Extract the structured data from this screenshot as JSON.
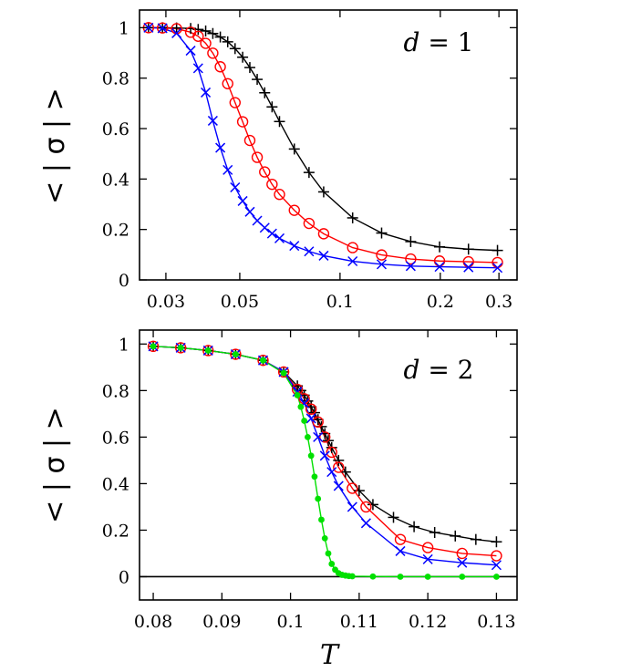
{
  "chart_data": [
    {
      "type": "line",
      "annotation": "d = 1",
      "ylabel": "< | σ | >",
      "xlabel": "",
      "xscale": "log",
      "xlim": [
        0.025,
        0.34
      ],
      "ylim": [
        0,
        1.07
      ],
      "xticks": [
        0.03,
        0.05,
        0.1,
        0.2,
        0.3
      ],
      "xtick_labels": [
        "0.03",
        "0.05",
        "0.1",
        "0.2",
        "0.3"
      ],
      "yticks": [
        0,
        0.2,
        0.4,
        0.6,
        0.8,
        1
      ],
      "ytick_labels": [
        "0",
        "0.2",
        "0.4",
        "0.6",
        "0.8",
        "1"
      ],
      "series": [
        {
          "color": "#000000",
          "marker": "plus",
          "x": [
            0.0266,
            0.0293,
            0.0323,
            0.0356,
            0.0375,
            0.0395,
            0.0415,
            0.0437,
            0.046,
            0.0484,
            0.051,
            0.0536,
            0.0564,
            0.0594,
            0.0625,
            0.0658,
            0.0729,
            0.0807,
            0.0893,
            0.1091,
            0.1333,
            0.163,
            0.199,
            0.243,
            0.297
          ],
          "y": [
            1.0,
            1.0,
            0.999,
            0.997,
            0.993,
            0.987,
            0.977,
            0.963,
            0.944,
            0.917,
            0.883,
            0.842,
            0.795,
            0.742,
            0.686,
            0.628,
            0.519,
            0.426,
            0.349,
            0.246,
            0.186,
            0.152,
            0.131,
            0.122,
            0.117
          ]
        },
        {
          "color": "#ff0000",
          "marker": "circle",
          "x": [
            0.0266,
            0.0293,
            0.0323,
            0.0356,
            0.0375,
            0.0395,
            0.0415,
            0.0437,
            0.046,
            0.0484,
            0.051,
            0.0536,
            0.0564,
            0.0594,
            0.0625,
            0.0658,
            0.0729,
            0.0807,
            0.0893,
            0.1091,
            0.1333,
            0.163,
            0.199,
            0.243,
            0.297
          ],
          "y": [
            1.0,
            0.999,
            0.996,
            0.982,
            0.966,
            0.938,
            0.899,
            0.845,
            0.778,
            0.703,
            0.627,
            0.553,
            0.486,
            0.428,
            0.379,
            0.339,
            0.276,
            0.224,
            0.183,
            0.128,
            0.099,
            0.083,
            0.075,
            0.072,
            0.069
          ]
        },
        {
          "color": "#0000ff",
          "marker": "x",
          "x": [
            0.0266,
            0.0293,
            0.0323,
            0.0356,
            0.0375,
            0.0395,
            0.0415,
            0.0437,
            0.046,
            0.0484,
            0.051,
            0.0536,
            0.0564,
            0.0594,
            0.0625,
            0.0658,
            0.0729,
            0.0807,
            0.0893,
            0.1091,
            0.1333,
            0.163,
            0.199,
            0.243,
            0.297
          ],
          "y": [
            1.0,
            0.998,
            0.978,
            0.909,
            0.839,
            0.743,
            0.631,
            0.524,
            0.436,
            0.367,
            0.313,
            0.27,
            0.235,
            0.207,
            0.184,
            0.165,
            0.135,
            0.113,
            0.096,
            0.074,
            0.062,
            0.055,
            0.052,
            0.05,
            0.048
          ]
        }
      ]
    },
    {
      "type": "line",
      "annotation": "d = 2",
      "ylabel": "< | σ | >",
      "xlabel": "T",
      "xlim": [
        0.078,
        0.133
      ],
      "ylim": [
        -0.1,
        1.06
      ],
      "xticks": [
        0.08,
        0.09,
        0.1,
        0.11,
        0.12,
        0.13
      ],
      "xtick_labels": [
        "0.08",
        "0.09",
        "0.1",
        "0.11",
        "0.12",
        "0.13"
      ],
      "yticks": [
        0,
        0.2,
        0.4,
        0.6,
        0.8,
        1
      ],
      "ytick_labels": [
        "0",
        "0.2",
        "0.4",
        "0.6",
        "0.8",
        "1"
      ],
      "zero_line": true,
      "series": [
        {
          "color": "#000000",
          "marker": "plus",
          "x": [
            0.08,
            0.084,
            0.088,
            0.092,
            0.096,
            0.099,
            0.101,
            0.1015,
            0.102,
            0.1025,
            0.103,
            0.1035,
            0.104,
            0.1045,
            0.105,
            0.1055,
            0.106,
            0.107,
            0.108,
            0.11,
            0.112,
            0.115,
            0.118,
            0.121,
            0.124,
            0.127,
            0.13
          ],
          "y": [
            0.99,
            0.984,
            0.972,
            0.956,
            0.93,
            0.88,
            0.82,
            0.8,
            0.78,
            0.755,
            0.73,
            0.705,
            0.675,
            0.645,
            0.615,
            0.585,
            0.555,
            0.5,
            0.45,
            0.37,
            0.31,
            0.255,
            0.215,
            0.19,
            0.175,
            0.16,
            0.15
          ]
        },
        {
          "color": "#ff0000",
          "marker": "circle",
          "x": [
            0.08,
            0.084,
            0.088,
            0.092,
            0.096,
            0.099,
            0.101,
            0.102,
            0.103,
            0.104,
            0.105,
            0.106,
            0.107,
            0.109,
            0.111,
            0.116,
            0.12,
            0.125,
            0.13
          ],
          "y": [
            0.99,
            0.984,
            0.972,
            0.956,
            0.93,
            0.88,
            0.805,
            0.765,
            0.72,
            0.665,
            0.6,
            0.535,
            0.47,
            0.38,
            0.3,
            0.16,
            0.125,
            0.1,
            0.09
          ]
        },
        {
          "color": "#0000ff",
          "marker": "x",
          "x": [
            0.08,
            0.084,
            0.088,
            0.092,
            0.096,
            0.099,
            0.101,
            0.102,
            0.103,
            0.104,
            0.105,
            0.106,
            0.107,
            0.109,
            0.111,
            0.116,
            0.12,
            0.125,
            0.13
          ],
          "y": [
            0.99,
            0.984,
            0.972,
            0.956,
            0.93,
            0.88,
            0.795,
            0.745,
            0.68,
            0.6,
            0.52,
            0.45,
            0.39,
            0.3,
            0.23,
            0.11,
            0.075,
            0.06,
            0.05
          ]
        },
        {
          "color": "#00e000",
          "marker": "dot",
          "x": [
            0.08,
            0.084,
            0.088,
            0.092,
            0.096,
            0.099,
            0.101,
            0.1015,
            0.102,
            0.1025,
            0.103,
            0.1035,
            0.104,
            0.1045,
            0.105,
            0.1055,
            0.106,
            0.1065,
            0.107,
            0.1075,
            0.108,
            0.1085,
            0.109,
            0.112,
            0.116,
            0.12,
            0.125,
            0.13
          ],
          "y": [
            0.99,
            0.984,
            0.972,
            0.956,
            0.93,
            0.875,
            0.78,
            0.73,
            0.67,
            0.6,
            0.52,
            0.43,
            0.335,
            0.245,
            0.165,
            0.1,
            0.055,
            0.03,
            0.015,
            0.008,
            0.005,
            0.003,
            0.002,
            0.001,
            0.0,
            0.0,
            0.0,
            0.0
          ]
        }
      ]
    }
  ]
}
